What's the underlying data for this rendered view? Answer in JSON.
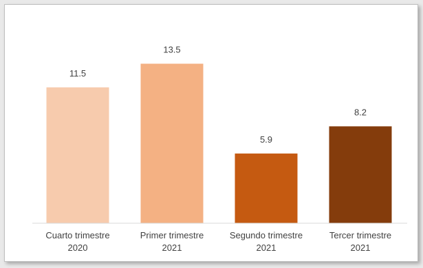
{
  "chart_data": {
    "type": "bar",
    "categories": [
      [
        "Cuarto trimestre",
        "2020"
      ],
      [
        "Primer trimestre",
        "2021"
      ],
      [
        "Segundo trimestre",
        "2021"
      ],
      [
        "Tercer trimestre",
        "2021"
      ]
    ],
    "values": [
      11.5,
      13.5,
      5.9,
      8.2
    ],
    "data_labels": [
      "11.5",
      "13.5",
      "5.9",
      "8.2"
    ],
    "bar_colors": [
      "#f7cbad",
      "#f4b183",
      "#c55a11",
      "#843c0c"
    ],
    "title": "",
    "xlabel": "",
    "ylabel": "",
    "ylim": [
      0,
      16
    ],
    "grid": false,
    "legend": "none"
  },
  "colors": {
    "axis": "#d9d9d9",
    "text": "#404040",
    "background": "#ffffff"
  }
}
